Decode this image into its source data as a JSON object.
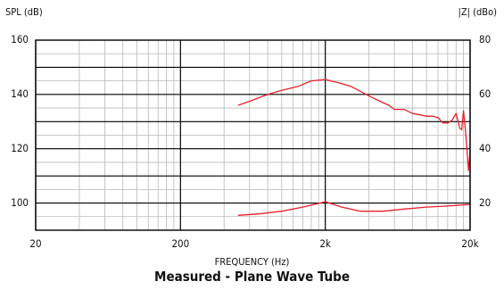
{
  "chart_data": {
    "type": "line",
    "title": "Measured - Plane Wave Tube",
    "xlabel": "FREQUENCY (Hz)",
    "ylabel": "SPL (dB)",
    "y2label": "|Z| (dBo)",
    "x_scale": "log",
    "xlim": [
      20,
      20000
    ],
    "ylim": [
      90,
      160
    ],
    "y2lim": [
      10,
      80
    ],
    "x_ticks": [
      {
        "value": 20,
        "label": "20"
      },
      {
        "value": 200,
        "label": "200"
      },
      {
        "value": 2000,
        "label": "2k"
      },
      {
        "value": 20000,
        "label": "20k"
      }
    ],
    "y_ticks": [
      {
        "value": 100,
        "label": "100"
      },
      {
        "value": 120,
        "label": "120"
      },
      {
        "value": 140,
        "label": "140"
      },
      {
        "value": 160,
        "label": "160"
      }
    ],
    "y2_ticks": [
      {
        "value": 20,
        "label": "20"
      },
      {
        "value": 40,
        "label": "40"
      },
      {
        "value": 60,
        "label": "60"
      },
      {
        "value": 80,
        "label": "80"
      }
    ],
    "grid": true,
    "line_color": "#e8202a",
    "series": [
      {
        "axis": "left",
        "x": [
          500,
          600,
          800,
          1000,
          1300,
          1600,
          2000,
          2400,
          3000,
          4000,
          5000,
          5500,
          6000,
          7000,
          8000,
          9000,
          10000,
          11000,
          12000,
          13000,
          14000,
          15000,
          16000,
          17000,
          17500,
          18000,
          18500,
          19000,
          19500,
          20000
        ],
        "y": [
          136,
          137.5,
          140,
          141.5,
          143,
          145,
          145.5,
          144.5,
          143,
          139.5,
          137,
          136,
          134.5,
          134.5,
          133,
          132.5,
          132,
          132,
          131.5,
          129.5,
          129.5,
          130.5,
          133,
          127.5,
          127,
          134,
          128,
          120,
          112,
          119
        ]
      },
      {
        "axis": "right",
        "x": [
          500,
          700,
          1000,
          1400,
          2000,
          2600,
          3500,
          5000,
          7000,
          10000,
          14000,
          20000
        ],
        "y": [
          15.5,
          16,
          17,
          18.5,
          20.5,
          18.5,
          17,
          17,
          17.8,
          18.5,
          18.9,
          19.5
        ]
      }
    ]
  }
}
